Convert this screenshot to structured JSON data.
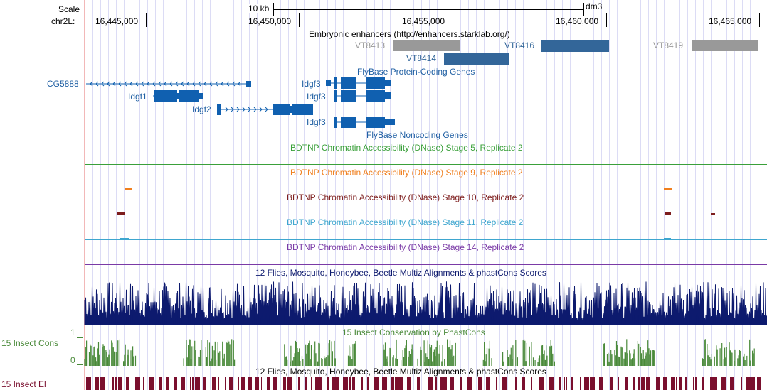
{
  "ruler": {
    "scale_label": "Scale",
    "chrom_label": "chr2L:",
    "scale_bar_label": "10 kb",
    "assembly": "dm3",
    "positions": [
      "16,445,000",
      "16,450,000",
      "16,455,000",
      "16,460,000",
      "16,465,000"
    ]
  },
  "tracks": {
    "enhancers": {
      "title": "Embryonic enhancers (http://enhancers.starklab.org/)",
      "items": [
        {
          "name": "VT8413",
          "color": "#999999"
        },
        {
          "name": "VT8414",
          "color": "#336699"
        },
        {
          "name": "VT8416",
          "color": "#336699"
        },
        {
          "name": "VT8419",
          "color": "#999999"
        }
      ]
    },
    "flybase_coding": {
      "title": "FlyBase Protein-Coding Genes",
      "genes": [
        "CG5888",
        "Idgf1",
        "Idgf2",
        "Idgf3",
        "Idgf3"
      ],
      "color": "#1060b0"
    },
    "flybase_noncoding": {
      "title": "FlyBase Noncoding Genes",
      "genes": [
        "Idgf3"
      ]
    },
    "dnase": [
      {
        "title": "BDTNP Chromatin Accessibility (DNase) Stage 5, Replicate 2",
        "color": "#3aa03a"
      },
      {
        "title": "BDTNP Chromatin Accessibility (DNase) Stage 9, Replicate 2",
        "color": "#f07f1e"
      },
      {
        "title": "BDTNP Chromatin Accessibility (DNase) Stage 10, Replicate 2",
        "color": "#7d1d1d"
      },
      {
        "title": "BDTNP Chromatin Accessibility (DNase) Stage 11, Replicate 2",
        "color": "#3ea6cf"
      },
      {
        "title": "BDTNP Chromatin Accessibility (DNase) Stage 14, Replicate 2",
        "color": "#7a3aa6"
      }
    ],
    "multiz": {
      "title": "12 Flies, Mosquito, Honeybee, Beetle Multiz Alignments & phastCons Scores",
      "color": "#0d1a6e"
    },
    "insect_cons": {
      "title": "15 Insect Conservation by PhastCons",
      "side_label": "15 Insect Cons",
      "axis_max": "1",
      "axis_min": "0",
      "color": "#4a8a3a"
    },
    "insect_el": {
      "title": "12 Flies, Mosquito, Honeybee, Beetle Multiz Alignments & phastCons Scores",
      "side_label": "15 Insect El",
      "color": "#7a0f2e"
    }
  }
}
